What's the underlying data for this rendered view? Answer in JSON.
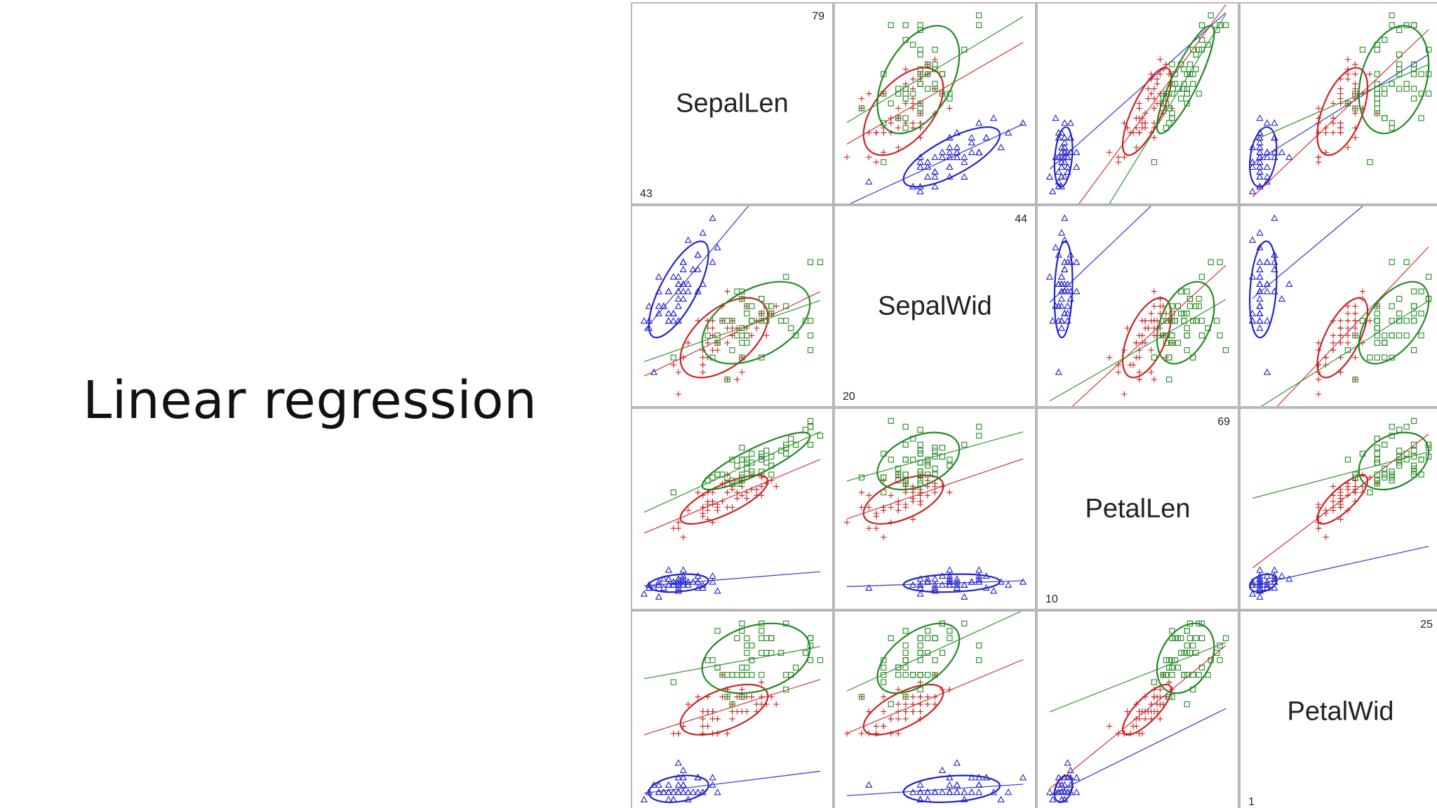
{
  "slide": {
    "title": "Linear regression"
  },
  "colors": {
    "species": [
      "#2222cc",
      "#cc2222",
      "#228822"
    ],
    "panel_border": "#b8b8b8"
  },
  "chart_data": {
    "type": "scatter-matrix",
    "title": "",
    "variables": [
      "SepalLen",
      "SepalWid",
      "PetalLen",
      "PetalWid"
    ],
    "ranges": [
      [
        43,
        79
      ],
      [
        20,
        44
      ],
      [
        10,
        69
      ],
      [
        1,
        25
      ]
    ],
    "range_labels": [
      [
        "43",
        "79"
      ],
      [
        "20",
        "44"
      ],
      [
        "10",
        "69"
      ],
      [
        "1",
        "25"
      ]
    ],
    "grid": false,
    "series": [
      {
        "marker": "triangle",
        "color": "#2222cc",
        "means": [
          50,
          34,
          15,
          2
        ],
        "sds": [
          3.5,
          3.8,
          1.7,
          1.0
        ],
        "points": [
          [
            51,
            35,
            14,
            2
          ],
          [
            49,
            30,
            14,
            2
          ],
          [
            47,
            32,
            13,
            2
          ],
          [
            46,
            31,
            15,
            2
          ],
          [
            50,
            36,
            14,
            2
          ],
          [
            54,
            39,
            17,
            4
          ],
          [
            46,
            34,
            14,
            3
          ],
          [
            50,
            34,
            15,
            2
          ],
          [
            44,
            29,
            14,
            2
          ],
          [
            49,
            31,
            15,
            1
          ],
          [
            54,
            37,
            15,
            2
          ],
          [
            48,
            34,
            16,
            2
          ],
          [
            48,
            30,
            14,
            1
          ],
          [
            43,
            30,
            11,
            1
          ],
          [
            58,
            40,
            12,
            2
          ],
          [
            57,
            44,
            15,
            4
          ],
          [
            54,
            39,
            13,
            4
          ],
          [
            51,
            35,
            14,
            3
          ],
          [
            57,
            38,
            17,
            3
          ],
          [
            51,
            38,
            15,
            3
          ],
          [
            54,
            34,
            17,
            2
          ],
          [
            51,
            37,
            15,
            4
          ],
          [
            46,
            36,
            10,
            2
          ],
          [
            51,
            33,
            17,
            5
          ],
          [
            48,
            34,
            19,
            2
          ],
          [
            50,
            30,
            16,
            2
          ],
          [
            50,
            34,
            16,
            4
          ],
          [
            52,
            35,
            15,
            2
          ],
          [
            52,
            34,
            14,
            2
          ],
          [
            47,
            32,
            16,
            2
          ],
          [
            48,
            31,
            16,
            2
          ],
          [
            54,
            34,
            15,
            4
          ],
          [
            52,
            41,
            15,
            1
          ],
          [
            55,
            42,
            14,
            2
          ],
          [
            49,
            31,
            15,
            2
          ],
          [
            50,
            32,
            12,
            2
          ],
          [
            55,
            35,
            13,
            2
          ],
          [
            49,
            36,
            14,
            1
          ],
          [
            44,
            30,
            13,
            2
          ],
          [
            51,
            34,
            15,
            2
          ],
          [
            50,
            35,
            13,
            3
          ],
          [
            45,
            23,
            13,
            3
          ],
          [
            44,
            32,
            13,
            2
          ],
          [
            50,
            35,
            16,
            6
          ],
          [
            51,
            38,
            19,
            4
          ],
          [
            48,
            30,
            14,
            3
          ],
          [
            51,
            38,
            16,
            2
          ],
          [
            46,
            32,
            14,
            2
          ],
          [
            53,
            37,
            15,
            2
          ],
          [
            50,
            33,
            14,
            2
          ]
        ]
      },
      {
        "marker": "plus",
        "color": "#cc2222",
        "means": [
          59,
          28,
          43,
          13
        ],
        "sds": [
          5.2,
          3.1,
          4.7,
          2.0
        ],
        "points": [
          [
            70,
            32,
            47,
            14
          ],
          [
            64,
            32,
            45,
            15
          ],
          [
            69,
            31,
            49,
            15
          ],
          [
            55,
            23,
            40,
            13
          ],
          [
            65,
            28,
            46,
            15
          ],
          [
            57,
            28,
            45,
            13
          ],
          [
            63,
            33,
            47,
            16
          ],
          [
            49,
            24,
            33,
            10
          ],
          [
            66,
            29,
            46,
            13
          ],
          [
            52,
            27,
            39,
            14
          ],
          [
            50,
            20,
            35,
            10
          ],
          [
            59,
            30,
            42,
            15
          ],
          [
            60,
            22,
            40,
            10
          ],
          [
            61,
            29,
            47,
            14
          ],
          [
            56,
            29,
            36,
            13
          ],
          [
            67,
            31,
            44,
            14
          ],
          [
            56,
            30,
            45,
            15
          ],
          [
            58,
            27,
            41,
            10
          ],
          [
            62,
            22,
            45,
            15
          ],
          [
            56,
            25,
            39,
            11
          ],
          [
            59,
            32,
            48,
            18
          ],
          [
            61,
            28,
            40,
            13
          ],
          [
            63,
            25,
            49,
            15
          ],
          [
            61,
            28,
            47,
            12
          ],
          [
            64,
            29,
            43,
            13
          ],
          [
            66,
            30,
            44,
            14
          ],
          [
            68,
            28,
            48,
            14
          ],
          [
            67,
            30,
            50,
            17
          ],
          [
            60,
            29,
            45,
            15
          ],
          [
            57,
            26,
            35,
            10
          ],
          [
            55,
            24,
            38,
            11
          ],
          [
            55,
            24,
            37,
            10
          ],
          [
            58,
            27,
            39,
            12
          ],
          [
            60,
            27,
            51,
            16
          ],
          [
            54,
            30,
            45,
            15
          ],
          [
            60,
            34,
            45,
            16
          ],
          [
            67,
            31,
            47,
            15
          ],
          [
            63,
            23,
            44,
            13
          ],
          [
            56,
            30,
            41,
            13
          ],
          [
            55,
            25,
            40,
            13
          ],
          [
            55,
            26,
            44,
            12
          ],
          [
            61,
            30,
            46,
            14
          ],
          [
            58,
            26,
            40,
            12
          ],
          [
            50,
            23,
            33,
            10
          ],
          [
            56,
            27,
            42,
            13
          ],
          [
            57,
            30,
            42,
            12
          ],
          [
            57,
            29,
            42,
            13
          ],
          [
            62,
            29,
            43,
            13
          ],
          [
            51,
            25,
            30,
            11
          ],
          [
            57,
            28,
            41,
            13
          ]
        ]
      },
      {
        "marker": "square",
        "color": "#228822",
        "means": [
          66,
          30,
          55,
          20
        ],
        "sds": [
          6.4,
          3.2,
          5.5,
          2.7
        ],
        "points": [
          [
            63,
            33,
            60,
            25
          ],
          [
            58,
            27,
            51,
            19
          ],
          [
            71,
            30,
            59,
            21
          ],
          [
            63,
            29,
            56,
            18
          ],
          [
            65,
            30,
            58,
            22
          ],
          [
            76,
            30,
            66,
            21
          ],
          [
            49,
            25,
            45,
            17
          ],
          [
            73,
            29,
            63,
            18
          ],
          [
            67,
            25,
            58,
            18
          ],
          [
            72,
            36,
            61,
            25
          ],
          [
            65,
            32,
            51,
            20
          ],
          [
            64,
            27,
            53,
            19
          ],
          [
            68,
            30,
            55,
            21
          ],
          [
            57,
            25,
            50,
            20
          ],
          [
            58,
            28,
            51,
            24
          ],
          [
            64,
            32,
            53,
            23
          ],
          [
            65,
            30,
            55,
            18
          ],
          [
            77,
            38,
            67,
            22
          ],
          [
            77,
            26,
            69,
            23
          ],
          [
            60,
            22,
            50,
            15
          ],
          [
            69,
            32,
            57,
            23
          ],
          [
            56,
            28,
            49,
            20
          ],
          [
            77,
            28,
            67,
            20
          ],
          [
            63,
            27,
            49,
            18
          ],
          [
            67,
            33,
            57,
            21
          ],
          [
            72,
            32,
            60,
            18
          ],
          [
            62,
            28,
            48,
            18
          ],
          [
            61,
            30,
            49,
            18
          ],
          [
            64,
            28,
            56,
            21
          ],
          [
            72,
            30,
            58,
            16
          ],
          [
            74,
            28,
            61,
            19
          ],
          [
            79,
            38,
            64,
            20
          ],
          [
            64,
            28,
            56,
            22
          ],
          [
            63,
            28,
            51,
            15
          ],
          [
            61,
            26,
            56,
            14
          ],
          [
            77,
            30,
            61,
            23
          ],
          [
            63,
            34,
            56,
            24
          ],
          [
            64,
            31,
            55,
            18
          ],
          [
            60,
            30,
            48,
            18
          ],
          [
            69,
            31,
            54,
            21
          ],
          [
            67,
            31,
            56,
            24
          ],
          [
            69,
            31,
            51,
            23
          ],
          [
            58,
            27,
            51,
            19
          ],
          [
            68,
            32,
            59,
            23
          ],
          [
            67,
            33,
            57,
            25
          ],
          [
            67,
            30,
            52,
            23
          ],
          [
            63,
            25,
            50,
            19
          ],
          [
            65,
            30,
            52,
            20
          ],
          [
            62,
            34,
            54,
            23
          ],
          [
            59,
            30,
            51,
            18
          ]
        ]
      }
    ]
  }
}
